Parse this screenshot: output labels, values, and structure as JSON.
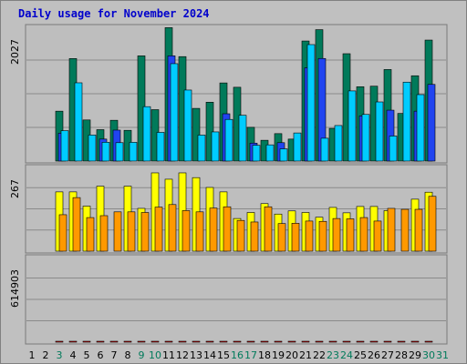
{
  "title": "Daily usage for November 2024",
  "chart_data": [
    {
      "type": "bar",
      "panel": "top",
      "ymax_label": "2027",
      "ymax": 2027,
      "x": [
        "1",
        "2",
        "3",
        "4",
        "5",
        "6",
        "7",
        "8",
        "9",
        "10",
        "11",
        "12",
        "13",
        "14",
        "15",
        "16",
        "17",
        "18",
        "19",
        "20",
        "21",
        "22",
        "23",
        "24",
        "25",
        "26",
        "27",
        "28",
        "29",
        "30",
        "31"
      ],
      "series": [
        {
          "color": "#007a5a",
          "values": [
            0,
            0,
            751,
            1543,
            619,
            473,
            614,
            463,
            1584,
            774,
            2008,
            1572,
            793,
            886,
            1176,
            1111,
            508,
            313,
            413,
            331,
            1807,
            1978,
            492,
            1616,
            1119,
            1127,
            1378,
            717,
            1284,
            1821,
            0
          ]
        },
        {
          "color": "#2044f0",
          "values": [
            0,
            0,
            420,
            0,
            0,
            331,
            466,
            0,
            0,
            0,
            1584,
            0,
            0,
            0,
            712,
            0,
            270,
            0,
            277,
            0,
            1404,
            1544,
            0,
            0,
            680,
            0,
            766,
            0,
            751,
            1154,
            0
          ]
        },
        {
          "color": "#00ccff",
          "values": [
            0,
            0,
            458,
            1178,
            392,
            283,
            277,
            282,
            819,
            432,
            1466,
            1069,
            391,
            439,
            627,
            689,
            238,
            244,
            184,
            423,
            1753,
            344,
            535,
            1056,
            702,
            890,
            377,
            1188,
            1000,
            0,
            0
          ]
        }
      ]
    },
    {
      "type": "bar",
      "panel": "middle",
      "ymax_label": "267",
      "ymax": 267,
      "x": [
        "1",
        "2",
        "3",
        "4",
        "5",
        "6",
        "7",
        "8",
        "9",
        "10",
        "11",
        "12",
        "13",
        "14",
        "15",
        "16",
        "17",
        "18",
        "19",
        "20",
        "21",
        "22",
        "23",
        "24",
        "25",
        "26",
        "27",
        "28",
        "29",
        "30",
        "31"
      ],
      "series": [
        {
          "color": "#ffff00",
          "values": [
            0,
            0,
            187,
            187,
            142,
            205,
            0,
            205,
            135,
            247,
            227,
            247,
            232,
            201,
            187,
            103,
            122,
            150,
            117,
            127,
            122,
            107,
            138,
            121,
            141,
            141,
            128,
            0,
            164,
            186,
            0
          ]
        },
        {
          "color": "#ff9900",
          "values": [
            0,
            0,
            115,
            169,
            106,
            112,
            124,
            124,
            122,
            139,
            147,
            128,
            124,
            136,
            140,
            97,
            92,
            140,
            87,
            88,
            95,
            94,
            103,
            102,
            106,
            95,
            135,
            132,
            132,
            173,
            0
          ]
        }
      ]
    },
    {
      "type": "bar",
      "panel": "bottom",
      "ymax_label": "614903",
      "ymax": 614903,
      "x": [
        "1",
        "2",
        "3",
        "4",
        "5",
        "6",
        "7",
        "8",
        "9",
        "10",
        "11",
        "12",
        "13",
        "14",
        "15",
        "16",
        "17",
        "18",
        "19",
        "20",
        "21",
        "22",
        "23",
        "24",
        "25",
        "26",
        "27",
        "28",
        "29",
        "30",
        "31"
      ],
      "series": [
        {
          "color": "#ff0000",
          "values": [
            0,
            0,
            61,
            79,
            70,
            262,
            100,
            37,
            68,
            45,
            73,
            42,
            46,
            413,
            109,
            42,
            111,
            145,
            58,
            29,
            25,
            22,
            33,
            61,
            40,
            44,
            52,
            36,
            262,
            569,
            0
          ]
        }
      ]
    }
  ],
  "x_label_colors": {
    "weekday": "#000000",
    "weekend": "#007a5a"
  },
  "weekend_days": [
    3,
    9,
    10,
    16,
    17,
    23,
    24,
    30,
    31
  ]
}
